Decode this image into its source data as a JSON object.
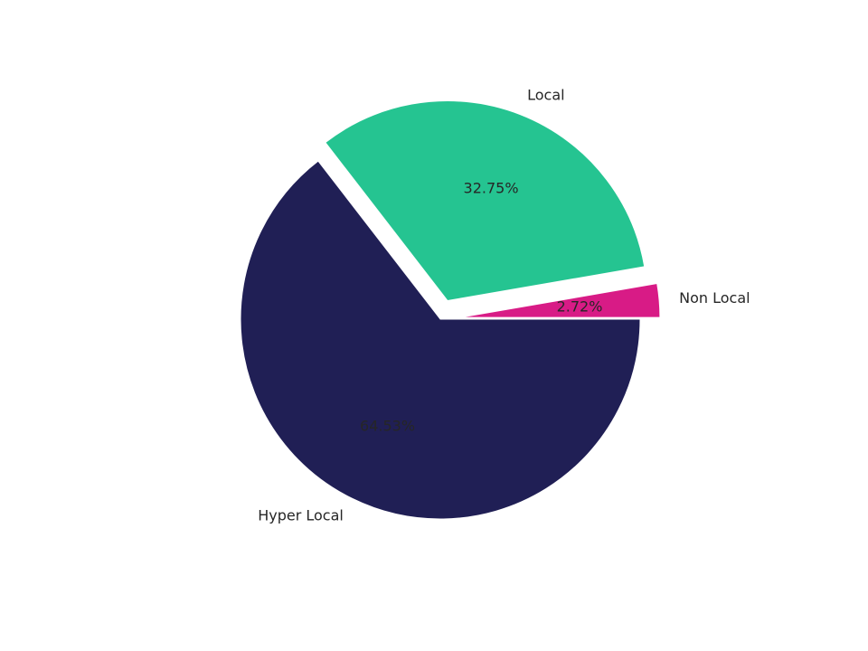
{
  "chart_data": {
    "type": "pie",
    "title": "",
    "slices": [
      {
        "label": "Hyper Local",
        "value": 64.53,
        "pct_label": "64.53%",
        "color": "#201f55",
        "exploded": false
      },
      {
        "label": "Local",
        "value": 32.75,
        "pct_label": "32.75%",
        "color": "#25c491",
        "exploded": true
      },
      {
        "label": "Non Local",
        "value": 2.72,
        "pct_label": "2.72%",
        "color": "#d81b86",
        "exploded": true
      }
    ],
    "start_angle_deg": 0,
    "direction": "clockwise",
    "legend": "none"
  }
}
